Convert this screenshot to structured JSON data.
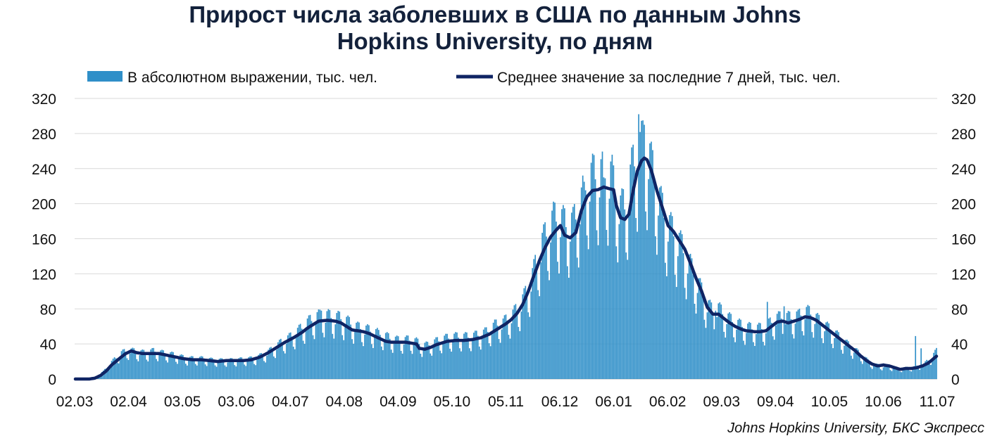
{
  "chart_data": {
    "type": "bar+line",
    "title_line1": "Прирост числа заболевших в США по данным Johns",
    "title_line2": "Hopkins University, по дням",
    "x_tick_labels": [
      "02.03",
      "02.04",
      "03.05",
      "03.06",
      "04.07",
      "04.08",
      "04.09",
      "05.10",
      "05.11",
      "06.12",
      "06.01",
      "06.02",
      "09.03",
      "09.04",
      "10.05",
      "10.06",
      "11.07"
    ],
    "ylim": [
      0,
      320
    ],
    "y_ticks": [
      "0",
      "40",
      "80",
      "120",
      "160",
      "200",
      "240",
      "280",
      "320"
    ],
    "grid": true,
    "legend_position": "top",
    "series": [
      {
        "name": "В абсолютном выражении, тыс. чел.",
        "kind": "bar",
        "color": "#2f8fc8",
        "anchors": [
          [
            0,
            0
          ],
          [
            8,
            0
          ],
          [
            14,
            2
          ],
          [
            20,
            8
          ],
          [
            26,
            18
          ],
          [
            32,
            27
          ],
          [
            38,
            31
          ],
          [
            44,
            29
          ],
          [
            50,
            28
          ],
          [
            56,
            30
          ],
          [
            62,
            28
          ],
          [
            70,
            26
          ],
          [
            80,
            22
          ],
          [
            90,
            22
          ],
          [
            100,
            20
          ],
          [
            110,
            20
          ],
          [
            120,
            21
          ],
          [
            128,
            22
          ],
          [
            136,
            27
          ],
          [
            142,
            33
          ],
          [
            148,
            40
          ],
          [
            154,
            45
          ],
          [
            160,
            52
          ],
          [
            166,
            60
          ],
          [
            172,
            66
          ],
          [
            178,
            68
          ],
          [
            184,
            66
          ],
          [
            190,
            65
          ],
          [
            196,
            60
          ],
          [
            202,
            55
          ],
          [
            208,
            53
          ],
          [
            214,
            50
          ],
          [
            220,
            47
          ],
          [
            226,
            43
          ],
          [
            232,
            41
          ],
          [
            238,
            42
          ],
          [
            244,
            40
          ],
          [
            248,
            36
          ],
          [
            252,
            36
          ],
          [
            258,
            40
          ],
          [
            264,
            43
          ],
          [
            270,
            45
          ],
          [
            276,
            45
          ],
          [
            282,
            45
          ],
          [
            288,
            47
          ],
          [
            294,
            50
          ],
          [
            300,
            57
          ],
          [
            306,
            60
          ],
          [
            312,
            67
          ],
          [
            318,
            78
          ],
          [
            322,
            90
          ],
          [
            326,
            105
          ],
          [
            330,
            125
          ],
          [
            334,
            145
          ],
          [
            338,
            158
          ],
          [
            342,
            170
          ],
          [
            346,
            172
          ],
          [
            350,
            165
          ],
          [
            356,
            165
          ],
          [
            362,
            190
          ],
          [
            366,
            210
          ],
          [
            370,
            216
          ],
          [
            374,
            218
          ],
          [
            380,
            218
          ],
          [
            384,
            215
          ],
          [
            386,
            198
          ],
          [
            390,
            182
          ],
          [
            394,
            185
          ],
          [
            398,
            222
          ],
          [
            402,
            240
          ],
          [
            406,
            250
          ],
          [
            410,
            240
          ],
          [
            414,
            215
          ],
          [
            418,
            190
          ],
          [
            422,
            170
          ],
          [
            428,
            155
          ],
          [
            434,
            140
          ],
          [
            440,
            120
          ],
          [
            446,
            100
          ],
          [
            452,
            80
          ],
          [
            456,
            72
          ],
          [
            460,
            75
          ],
          [
            466,
            66
          ],
          [
            472,
            60
          ],
          [
            478,
            56
          ],
          [
            484,
            54
          ],
          [
            490,
            54
          ],
          [
            494,
            55
          ],
          [
            500,
            64
          ],
          [
            506,
            66
          ],
          [
            512,
            65
          ],
          [
            518,
            68
          ],
          [
            522,
            72
          ],
          [
            526,
            70
          ],
          [
            532,
            62
          ],
          [
            538,
            55
          ],
          [
            544,
            48
          ],
          [
            550,
            40
          ],
          [
            556,
            33
          ],
          [
            562,
            26
          ],
          [
            568,
            18
          ],
          [
            572,
            15
          ],
          [
            578,
            14
          ],
          [
            584,
            13
          ],
          [
            590,
            11
          ],
          [
            596,
            12
          ],
          [
            602,
            13
          ],
          [
            606,
            14
          ],
          [
            610,
            20
          ],
          [
            614,
            26
          ],
          [
            616,
            30
          ]
        ],
        "spikes": [
          [
            176,
            78
          ],
          [
            217,
            56
          ],
          [
            364,
            225
          ],
          [
            378,
            230
          ],
          [
            403,
            302
          ],
          [
            407,
            290
          ],
          [
            458,
            78
          ],
          [
            495,
            88
          ],
          [
            507,
            83
          ],
          [
            517,
            79
          ],
          [
            601,
            49
          ],
          [
            605,
            35
          ]
        ]
      },
      {
        "name": "Среднее значение за последние 7 дней, тыс. чел.",
        "kind": "line",
        "color": "#0f2464",
        "points": [
          [
            0,
            0
          ],
          [
            10,
            0
          ],
          [
            14,
            1
          ],
          [
            18,
            4
          ],
          [
            22,
            9
          ],
          [
            26,
            16
          ],
          [
            32,
            24
          ],
          [
            36,
            29
          ],
          [
            40,
            32
          ],
          [
            44,
            30
          ],
          [
            48,
            29
          ],
          [
            52,
            29
          ],
          [
            56,
            29
          ],
          [
            60,
            29
          ],
          [
            66,
            27
          ],
          [
            72,
            25
          ],
          [
            78,
            23
          ],
          [
            84,
            22
          ],
          [
            90,
            22
          ],
          [
            96,
            21
          ],
          [
            102,
            20
          ],
          [
            108,
            21
          ],
          [
            114,
            21
          ],
          [
            120,
            21
          ],
          [
            126,
            22
          ],
          [
            132,
            25
          ],
          [
            138,
            30
          ],
          [
            144,
            36
          ],
          [
            150,
            42
          ],
          [
            156,
            47
          ],
          [
            162,
            53
          ],
          [
            166,
            58
          ],
          [
            170,
            62
          ],
          [
            174,
            66
          ],
          [
            180,
            67
          ],
          [
            186,
            66
          ],
          [
            190,
            64
          ],
          [
            194,
            60
          ],
          [
            198,
            56
          ],
          [
            202,
            55
          ],
          [
            206,
            54
          ],
          [
            210,
            52
          ],
          [
            214,
            49
          ],
          [
            218,
            46
          ],
          [
            222,
            43
          ],
          [
            226,
            42
          ],
          [
            230,
            42
          ],
          [
            236,
            42
          ],
          [
            240,
            41
          ],
          [
            244,
            40
          ],
          [
            246,
            35
          ],
          [
            250,
            34
          ],
          [
            254,
            36
          ],
          [
            258,
            39
          ],
          [
            262,
            41
          ],
          [
            266,
            43
          ],
          [
            272,
            44
          ],
          [
            278,
            44
          ],
          [
            284,
            45
          ],
          [
            290,
            47
          ],
          [
            296,
            51
          ],
          [
            300,
            55
          ],
          [
            304,
            59
          ],
          [
            308,
            63
          ],
          [
            312,
            68
          ],
          [
            316,
            75
          ],
          [
            320,
            85
          ],
          [
            324,
            100
          ],
          [
            328,
            118
          ],
          [
            332,
            135
          ],
          [
            336,
            150
          ],
          [
            340,
            162
          ],
          [
            344,
            170
          ],
          [
            347,
            175
          ],
          [
            350,
            164
          ],
          [
            354,
            161
          ],
          [
            358,
            167
          ],
          [
            362,
            192
          ],
          [
            366,
            208
          ],
          [
            370,
            215
          ],
          [
            374,
            216
          ],
          [
            378,
            219
          ],
          [
            382,
            217
          ],
          [
            385,
            216
          ],
          [
            387,
            198
          ],
          [
            390,
            184
          ],
          [
            393,
            182
          ],
          [
            396,
            188
          ],
          [
            399,
            215
          ],
          [
            402,
            237
          ],
          [
            405,
            249
          ],
          [
            407,
            252
          ],
          [
            409,
            250
          ],
          [
            412,
            238
          ],
          [
            416,
            215
          ],
          [
            420,
            195
          ],
          [
            424,
            175
          ],
          [
            428,
            168
          ],
          [
            432,
            158
          ],
          [
            436,
            148
          ],
          [
            440,
            132
          ],
          [
            444,
            115
          ],
          [
            448,
            100
          ],
          [
            452,
            82
          ],
          [
            456,
            74
          ],
          [
            460,
            74
          ],
          [
            464,
            69
          ],
          [
            468,
            64
          ],
          [
            472,
            60
          ],
          [
            476,
            57
          ],
          [
            480,
            55
          ],
          [
            486,
            54
          ],
          [
            490,
            54
          ],
          [
            494,
            55
          ],
          [
            498,
            60
          ],
          [
            502,
            65
          ],
          [
            506,
            66
          ],
          [
            510,
            64
          ],
          [
            514,
            66
          ],
          [
            518,
            68
          ],
          [
            522,
            71
          ],
          [
            526,
            70
          ],
          [
            530,
            67
          ],
          [
            534,
            62
          ],
          [
            538,
            57
          ],
          [
            542,
            52
          ],
          [
            546,
            47
          ],
          [
            550,
            42
          ],
          [
            554,
            37
          ],
          [
            558,
            32
          ],
          [
            562,
            26
          ],
          [
            566,
            21
          ],
          [
            570,
            17
          ],
          [
            574,
            15
          ],
          [
            578,
            16
          ],
          [
            582,
            15
          ],
          [
            586,
            13
          ],
          [
            590,
            11
          ],
          [
            594,
            12
          ],
          [
            598,
            12
          ],
          [
            602,
            13
          ],
          [
            606,
            15
          ],
          [
            610,
            18
          ],
          [
            613,
            22
          ],
          [
            616,
            26
          ]
        ]
      }
    ],
    "source": "Johns Hopkins University, БКС Экспресс"
  }
}
